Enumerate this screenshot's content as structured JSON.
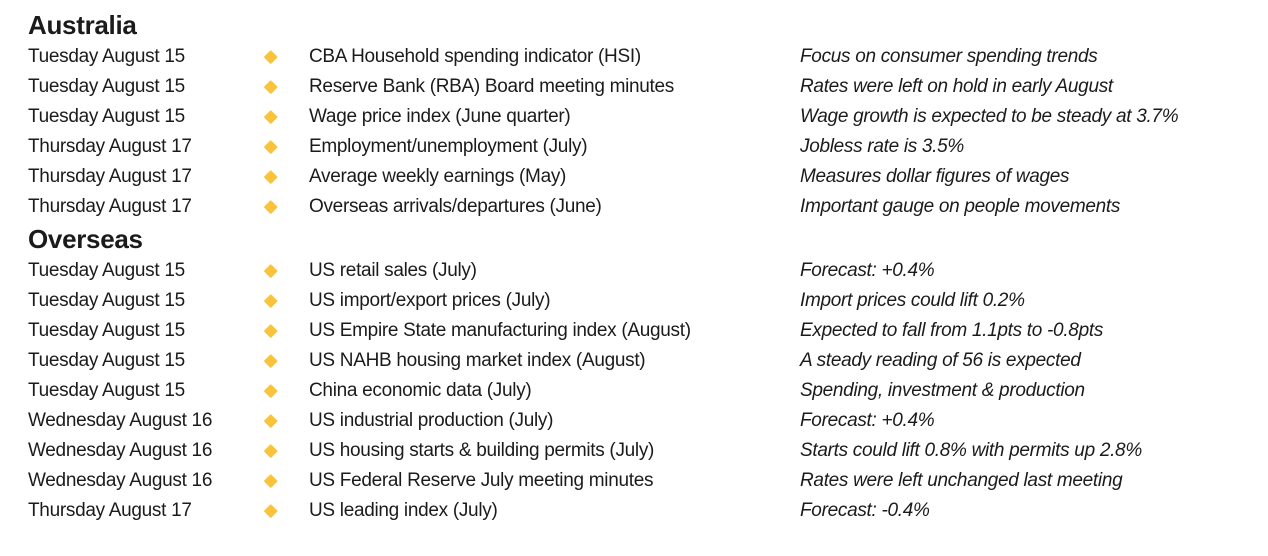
{
  "colors": {
    "background": "#ffffff",
    "text": "#1b1b1b",
    "bullet": "#f9c33c"
  },
  "icons": {
    "bullet": "diamond-icon"
  },
  "sections": [
    {
      "title": "Australia",
      "rows": [
        {
          "date": "Tuesday August 15",
          "event": "CBA Household spending indicator (HSI)",
          "note": "Focus on consumer spending trends"
        },
        {
          "date": "Tuesday August 15",
          "event": "Reserve Bank (RBA) Board meeting minutes",
          "note": "Rates were left on hold in early August"
        },
        {
          "date": "Tuesday August 15",
          "event": "Wage price index (June quarter)",
          "note": "Wage growth is expected to be steady at 3.7%"
        },
        {
          "date": "Thursday August 17",
          "event": "Employment/unemployment (July)",
          "note": "Jobless rate is 3.5%"
        },
        {
          "date": "Thursday August 17",
          "event": "Average weekly earnings (May)",
          "note": "Measures dollar figures of wages"
        },
        {
          "date": "Thursday August 17",
          "event": "Overseas arrivals/departures (June)",
          "note": "Important gauge on people movements"
        }
      ]
    },
    {
      "title": "Overseas",
      "rows": [
        {
          "date": "Tuesday August 15",
          "event": "US retail sales (July)",
          "note": "Forecast: +0.4%"
        },
        {
          "date": "Tuesday August 15",
          "event": "US import/export prices (July)",
          "note": "Import prices could lift 0.2%"
        },
        {
          "date": "Tuesday August 15",
          "event": "US Empire State manufacturing index (August)",
          "note": "Expected to fall from 1.1pts to -0.8pts"
        },
        {
          "date": "Tuesday August 15",
          "event": "US NAHB housing market index (August)",
          "note": "A steady reading of 56 is expected"
        },
        {
          "date": "Tuesday August 15",
          "event": "China economic data (July)",
          "note": "Spending, investment & production"
        },
        {
          "date": "Wednesday August 16",
          "event": "US industrial production (July)",
          "note": "Forecast: +0.4%"
        },
        {
          "date": "Wednesday August 16",
          "event": "US housing starts & building permits (July)",
          "note": "Starts could lift 0.8% with permits up 2.8%"
        },
        {
          "date": "Wednesday August 16",
          "event": "US Federal Reserve July meeting minutes",
          "note": "Rates were left unchanged last meeting"
        },
        {
          "date": "Thursday August 17",
          "event": "US leading index (July)",
          "note": "Forecast: -0.4%"
        }
      ]
    }
  ]
}
